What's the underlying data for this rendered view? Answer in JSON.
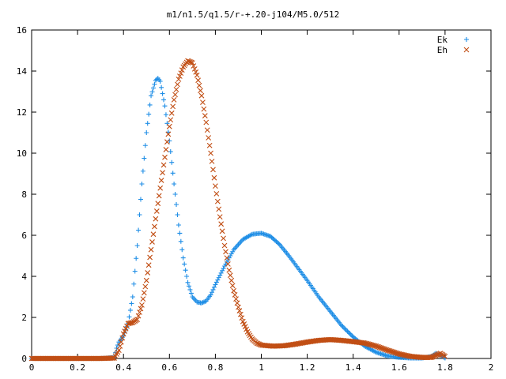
{
  "chart_data": {
    "type": "scatter",
    "title": "m1/n1.5/q1.5/r-+.20-j104/M5.0/512",
    "xlabel": "",
    "ylabel": "",
    "xlim": [
      0,
      2
    ],
    "ylim": [
      0,
      16
    ],
    "x_ticks": [
      "0",
      "0.2",
      "0.4",
      "0.6",
      "0.8",
      "1",
      "1.2",
      "1.4",
      "1.6",
      "1.8",
      "2"
    ],
    "y_ticks": [
      "0",
      "2",
      "4",
      "6",
      "8",
      "10",
      "12",
      "14",
      "16"
    ],
    "grid": false,
    "legend_position": "top-right",
    "series": [
      {
        "name": "Ek",
        "marker": "plus",
        "color": "#1f8ee6",
        "points": [
          [
            0.0,
            0.0
          ],
          [
            0.1,
            0.0
          ],
          [
            0.2,
            0.0
          ],
          [
            0.3,
            0.0
          ],
          [
            0.36,
            0.05
          ],
          [
            0.37,
            0.5
          ],
          [
            0.38,
            0.8
          ],
          [
            0.4,
            1.1
          ],
          [
            0.42,
            1.7
          ],
          [
            0.44,
            3.0
          ],
          [
            0.46,
            5.5
          ],
          [
            0.48,
            8.5
          ],
          [
            0.5,
            11.0
          ],
          [
            0.52,
            12.8
          ],
          [
            0.54,
            13.55
          ],
          [
            0.55,
            13.65
          ],
          [
            0.56,
            13.5
          ],
          [
            0.58,
            12.3
          ],
          [
            0.6,
            10.6
          ],
          [
            0.62,
            8.5
          ],
          [
            0.64,
            6.5
          ],
          [
            0.66,
            4.9
          ],
          [
            0.68,
            3.7
          ],
          [
            0.7,
            3.0
          ],
          [
            0.72,
            2.75
          ],
          [
            0.74,
            2.7
          ],
          [
            0.76,
            2.8
          ],
          [
            0.78,
            3.1
          ],
          [
            0.8,
            3.6
          ],
          [
            0.84,
            4.5
          ],
          [
            0.88,
            5.3
          ],
          [
            0.92,
            5.8
          ],
          [
            0.96,
            6.05
          ],
          [
            1.0,
            6.1
          ],
          [
            1.04,
            5.95
          ],
          [
            1.08,
            5.55
          ],
          [
            1.12,
            5.0
          ],
          [
            1.16,
            4.4
          ],
          [
            1.2,
            3.8
          ],
          [
            1.25,
            3.0
          ],
          [
            1.3,
            2.3
          ],
          [
            1.35,
            1.6
          ],
          [
            1.4,
            1.05
          ],
          [
            1.45,
            0.6
          ],
          [
            1.5,
            0.3
          ],
          [
            1.55,
            0.12
          ],
          [
            1.6,
            0.05
          ],
          [
            1.65,
            0.02
          ],
          [
            1.7,
            0.02
          ],
          [
            1.74,
            0.1
          ],
          [
            1.76,
            0.25
          ],
          [
            1.78,
            0.15
          ],
          [
            1.8,
            0.02
          ]
        ]
      },
      {
        "name": "Eh",
        "marker": "cross",
        "color": "#c14e14",
        "points": [
          [
            0.0,
            0.0
          ],
          [
            0.1,
            0.0
          ],
          [
            0.2,
            0.0
          ],
          [
            0.3,
            0.0
          ],
          [
            0.36,
            0.02
          ],
          [
            0.38,
            0.4
          ],
          [
            0.4,
            1.2
          ],
          [
            0.42,
            1.7
          ],
          [
            0.44,
            1.75
          ],
          [
            0.46,
            1.9
          ],
          [
            0.48,
            2.6
          ],
          [
            0.5,
            3.8
          ],
          [
            0.52,
            5.3
          ],
          [
            0.54,
            6.8
          ],
          [
            0.56,
            8.3
          ],
          [
            0.58,
            9.8
          ],
          [
            0.6,
            11.3
          ],
          [
            0.62,
            12.6
          ],
          [
            0.64,
            13.6
          ],
          [
            0.66,
            14.2
          ],
          [
            0.68,
            14.5
          ],
          [
            0.7,
            14.4
          ],
          [
            0.72,
            13.8
          ],
          [
            0.74,
            12.8
          ],
          [
            0.76,
            11.5
          ],
          [
            0.78,
            10.0
          ],
          [
            0.8,
            8.4
          ],
          [
            0.82,
            6.9
          ],
          [
            0.84,
            5.5
          ],
          [
            0.86,
            4.3
          ],
          [
            0.88,
            3.3
          ],
          [
            0.9,
            2.5
          ],
          [
            0.92,
            1.8
          ],
          [
            0.94,
            1.3
          ],
          [
            0.96,
            0.95
          ],
          [
            0.98,
            0.75
          ],
          [
            1.0,
            0.65
          ],
          [
            1.05,
            0.6
          ],
          [
            1.1,
            0.62
          ],
          [
            1.15,
            0.7
          ],
          [
            1.2,
            0.8
          ],
          [
            1.25,
            0.88
          ],
          [
            1.3,
            0.92
          ],
          [
            1.35,
            0.88
          ],
          [
            1.4,
            0.82
          ],
          [
            1.45,
            0.75
          ],
          [
            1.5,
            0.6
          ],
          [
            1.55,
            0.4
          ],
          [
            1.6,
            0.22
          ],
          [
            1.65,
            0.1
          ],
          [
            1.7,
            0.05
          ],
          [
            1.74,
            0.05
          ],
          [
            1.76,
            0.15
          ],
          [
            1.78,
            0.25
          ],
          [
            1.8,
            0.1
          ]
        ]
      }
    ]
  }
}
